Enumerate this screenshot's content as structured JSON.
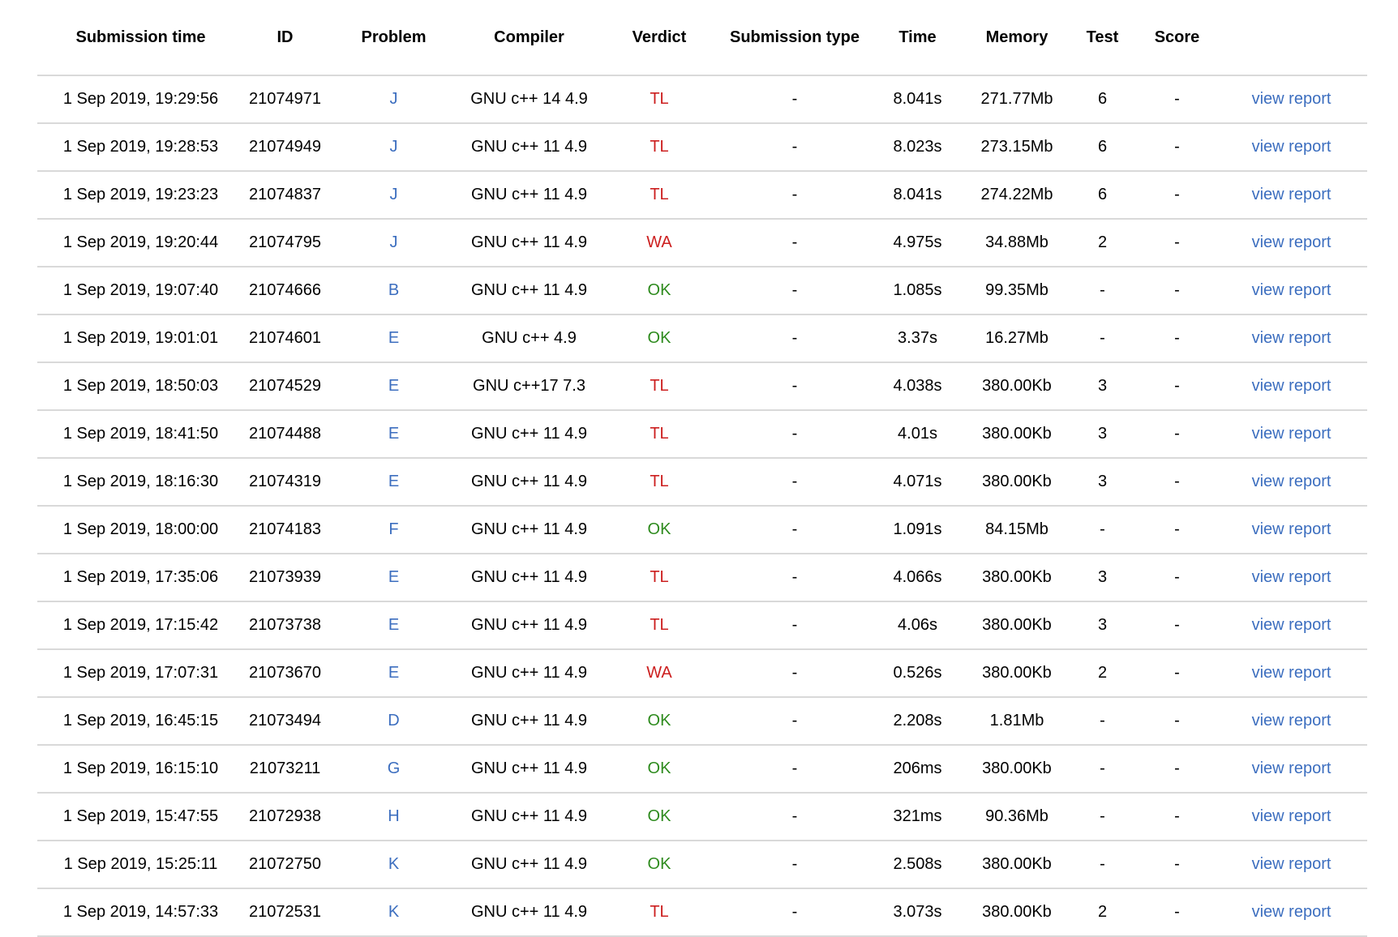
{
  "columns": {
    "time": "Submission time",
    "id": "ID",
    "problem": "Problem",
    "compiler": "Compiler",
    "verdict": "Verdict",
    "type": "Submission type",
    "runtime": "Time",
    "memory": "Memory",
    "test": "Test",
    "score": "Score"
  },
  "report_label": "view report",
  "colors": {
    "link": "#3c6ebf",
    "verdict_fail": "#cc1f1f",
    "verdict_ok": "#2e8b1e",
    "divider": "#d9d9d9"
  },
  "rows": [
    {
      "time": "1 Sep 2019, 19:29:56",
      "id": "21074971",
      "problem": "J",
      "compiler": "GNU c++ 14 4.9",
      "verdict": "TL",
      "type": "-",
      "runtime": "8.041s",
      "memory": "271.77Mb",
      "test": "6",
      "score": "-"
    },
    {
      "time": "1 Sep 2019, 19:28:53",
      "id": "21074949",
      "problem": "J",
      "compiler": "GNU c++ 11 4.9",
      "verdict": "TL",
      "type": "-",
      "runtime": "8.023s",
      "memory": "273.15Mb",
      "test": "6",
      "score": "-"
    },
    {
      "time": "1 Sep 2019, 19:23:23",
      "id": "21074837",
      "problem": "J",
      "compiler": "GNU c++ 11 4.9",
      "verdict": "TL",
      "type": "-",
      "runtime": "8.041s",
      "memory": "274.22Mb",
      "test": "6",
      "score": "-"
    },
    {
      "time": "1 Sep 2019, 19:20:44",
      "id": "21074795",
      "problem": "J",
      "compiler": "GNU c++ 11 4.9",
      "verdict": "WA",
      "type": "-",
      "runtime": "4.975s",
      "memory": "34.88Mb",
      "test": "2",
      "score": "-"
    },
    {
      "time": "1 Sep 2019, 19:07:40",
      "id": "21074666",
      "problem": "B",
      "compiler": "GNU c++ 11 4.9",
      "verdict": "OK",
      "type": "-",
      "runtime": "1.085s",
      "memory": "99.35Mb",
      "test": "-",
      "score": "-"
    },
    {
      "time": "1 Sep 2019, 19:01:01",
      "id": "21074601",
      "problem": "E",
      "compiler": "GNU c++ 4.9",
      "verdict": "OK",
      "type": "-",
      "runtime": "3.37s",
      "memory": "16.27Mb",
      "test": "-",
      "score": "-"
    },
    {
      "time": "1 Sep 2019, 18:50:03",
      "id": "21074529",
      "problem": "E",
      "compiler": "GNU c++17 7.3",
      "verdict": "TL",
      "type": "-",
      "runtime": "4.038s",
      "memory": "380.00Kb",
      "test": "3",
      "score": "-"
    },
    {
      "time": "1 Sep 2019, 18:41:50",
      "id": "21074488",
      "problem": "E",
      "compiler": "GNU c++ 11 4.9",
      "verdict": "TL",
      "type": "-",
      "runtime": "4.01s",
      "memory": "380.00Kb",
      "test": "3",
      "score": "-"
    },
    {
      "time": "1 Sep 2019, 18:16:30",
      "id": "21074319",
      "problem": "E",
      "compiler": "GNU c++ 11 4.9",
      "verdict": "TL",
      "type": "-",
      "runtime": "4.071s",
      "memory": "380.00Kb",
      "test": "3",
      "score": "-"
    },
    {
      "time": "1 Sep 2019, 18:00:00",
      "id": "21074183",
      "problem": "F",
      "compiler": "GNU c++ 11 4.9",
      "verdict": "OK",
      "type": "-",
      "runtime": "1.091s",
      "memory": "84.15Mb",
      "test": "-",
      "score": "-"
    },
    {
      "time": "1 Sep 2019, 17:35:06",
      "id": "21073939",
      "problem": "E",
      "compiler": "GNU c++ 11 4.9",
      "verdict": "TL",
      "type": "-",
      "runtime": "4.066s",
      "memory": "380.00Kb",
      "test": "3",
      "score": "-"
    },
    {
      "time": "1 Sep 2019, 17:15:42",
      "id": "21073738",
      "problem": "E",
      "compiler": "GNU c++ 11 4.9",
      "verdict": "TL",
      "type": "-",
      "runtime": "4.06s",
      "memory": "380.00Kb",
      "test": "3",
      "score": "-"
    },
    {
      "time": "1 Sep 2019, 17:07:31",
      "id": "21073670",
      "problem": "E",
      "compiler": "GNU c++ 11 4.9",
      "verdict": "WA",
      "type": "-",
      "runtime": "0.526s",
      "memory": "380.00Kb",
      "test": "2",
      "score": "-"
    },
    {
      "time": "1 Sep 2019, 16:45:15",
      "id": "21073494",
      "problem": "D",
      "compiler": "GNU c++ 11 4.9",
      "verdict": "OK",
      "type": "-",
      "runtime": "2.208s",
      "memory": "1.81Mb",
      "test": "-",
      "score": "-"
    },
    {
      "time": "1 Sep 2019, 16:15:10",
      "id": "21073211",
      "problem": "G",
      "compiler": "GNU c++ 11 4.9",
      "verdict": "OK",
      "type": "-",
      "runtime": "206ms",
      "memory": "380.00Kb",
      "test": "-",
      "score": "-"
    },
    {
      "time": "1 Sep 2019, 15:47:55",
      "id": "21072938",
      "problem": "H",
      "compiler": "GNU c++ 11 4.9",
      "verdict": "OK",
      "type": "-",
      "runtime": "321ms",
      "memory": "90.36Mb",
      "test": "-",
      "score": "-"
    },
    {
      "time": "1 Sep 2019, 15:25:11",
      "id": "21072750",
      "problem": "K",
      "compiler": "GNU c++ 11 4.9",
      "verdict": "OK",
      "type": "-",
      "runtime": "2.508s",
      "memory": "380.00Kb",
      "test": "-",
      "score": "-"
    },
    {
      "time": "1 Sep 2019, 14:57:33",
      "id": "21072531",
      "problem": "K",
      "compiler": "GNU c++ 11 4.9",
      "verdict": "TL",
      "type": "-",
      "runtime": "3.073s",
      "memory": "380.00Kb",
      "test": "2",
      "score": "-"
    }
  ]
}
